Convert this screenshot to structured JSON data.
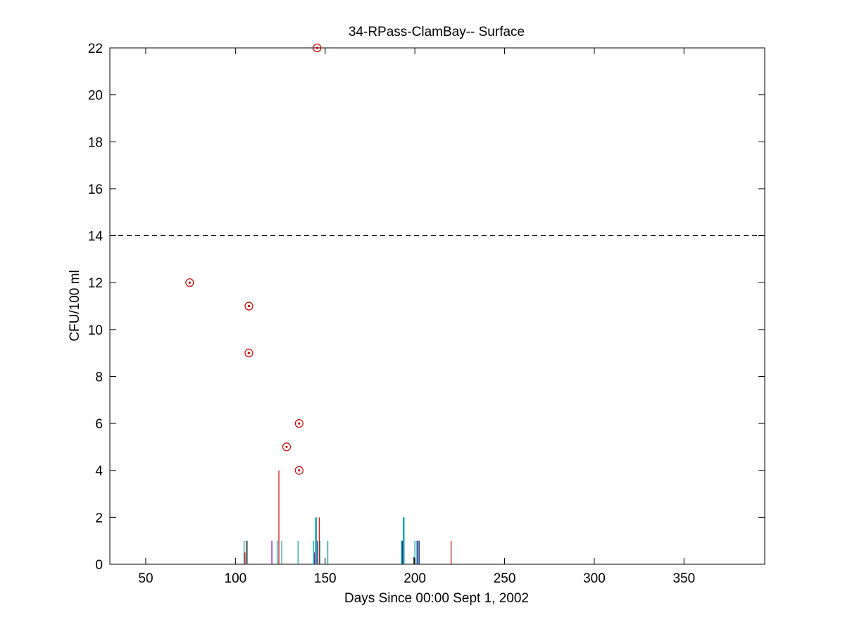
{
  "chart_data": {
    "type": "scatter",
    "title": "34-RPass-ClamBay-- Surface",
    "xlabel": "Days Since 00:00 Sept 1, 2002",
    "ylabel": "CFU/100 ml",
    "xlim": [
      30,
      395
    ],
    "ylim": [
      0,
      22
    ],
    "xticks": [
      50,
      100,
      150,
      200,
      250,
      300,
      350
    ],
    "yticks": [
      0,
      2,
      4,
      6,
      8,
      10,
      12,
      14,
      16,
      18,
      20,
      22
    ],
    "grid": false,
    "threshold": {
      "y": 14,
      "style": "dashed",
      "color": "#000000"
    },
    "series": [
      {
        "marker": "circled-dot",
        "color": "#cc0000",
        "points": [
          {
            "x": 74.5,
            "y": 12
          },
          {
            "x": 107.5,
            "y": 11
          },
          {
            "x": 107.5,
            "y": 9
          },
          {
            "x": 128.5,
            "y": 5
          },
          {
            "x": 135.5,
            "y": 6
          },
          {
            "x": 135.5,
            "y": 4
          },
          {
            "x": 145.5,
            "y": 22
          }
        ]
      }
    ],
    "stems": [
      {
        "x": 104.8,
        "y": 1,
        "color": "#00a0a0"
      },
      {
        "x": 105.3,
        "y": 0.5,
        "color": "#cc0000"
      },
      {
        "x": 106.0,
        "y": 1,
        "color": "#cc0000"
      },
      {
        "x": 106.6,
        "y": 1,
        "color": "#00a0a0"
      },
      {
        "x": 120.3,
        "y": 1,
        "color": "#800080"
      },
      {
        "x": 123.3,
        "y": 1,
        "color": "#00a0a0"
      },
      {
        "x": 124.2,
        "y": 4,
        "color": "#cc0000"
      },
      {
        "x": 125.8,
        "y": 1,
        "color": "#00a0a0"
      },
      {
        "x": 134.9,
        "y": 1,
        "color": "#00a0a0"
      },
      {
        "x": 143.5,
        "y": 1,
        "color": "#00a0a0"
      },
      {
        "x": 144.1,
        "y": 0.5,
        "color": "#800080"
      },
      {
        "x": 144.5,
        "y": 2,
        "color": "#00a0a0"
      },
      {
        "x": 145.1,
        "y": 2,
        "color": "#00a0a0"
      },
      {
        "x": 145.6,
        "y": 1,
        "color": "#1a1a8a"
      },
      {
        "x": 146.7,
        "y": 2,
        "color": "#cc0000"
      },
      {
        "x": 147.1,
        "y": 1,
        "color": "#00a0a0"
      },
      {
        "x": 151.5,
        "y": 1,
        "color": "#00a0a0"
      },
      {
        "x": 192.6,
        "y": 1,
        "color": "#00a0a0"
      },
      {
        "x": 193.0,
        "y": 1,
        "color": "#1a1a8a"
      },
      {
        "x": 193.5,
        "y": 2,
        "color": "#00a0a0"
      },
      {
        "x": 194.0,
        "y": 2,
        "color": "#00a0a0"
      },
      {
        "x": 199.5,
        "y": 0.3,
        "color": "#000000"
      },
      {
        "x": 200.0,
        "y": 1,
        "color": "#00a0a0"
      },
      {
        "x": 201.2,
        "y": 1,
        "color": "#1a1a8a"
      },
      {
        "x": 201.8,
        "y": 1,
        "color": "#00a0a0"
      },
      {
        "x": 202.4,
        "y": 1,
        "color": "#1a1a8a"
      },
      {
        "x": 220.2,
        "y": 1,
        "color": "#cc0000"
      }
    ]
  }
}
